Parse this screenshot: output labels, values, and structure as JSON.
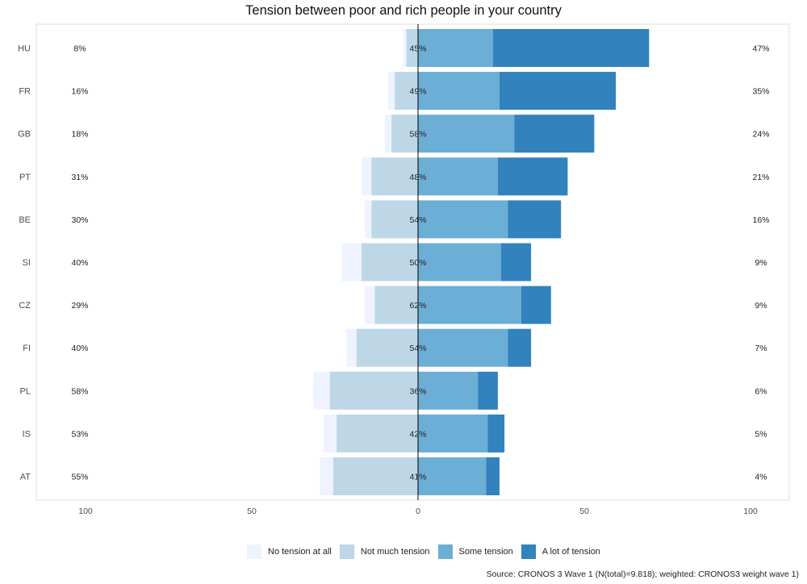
{
  "chart_data": {
    "type": "bar",
    "orientation": "horizontal-diverging",
    "title": "Tension between poor and rich people in your country",
    "categories": [
      "HU",
      "FR",
      "GB",
      "PT",
      "BE",
      "SI",
      "CZ",
      "FI",
      "PL",
      "IS",
      "AT"
    ],
    "series": [
      {
        "name": "No tension at all",
        "color": "#eff3ff",
        "values": [
          1,
          2,
          2,
          3,
          2,
          6,
          3,
          3,
          5,
          4,
          4
        ]
      },
      {
        "name": "Not much tension",
        "color": "#bdd7e7",
        "values": [
          7,
          14,
          16,
          28,
          28,
          34,
          26,
          37,
          53,
          49,
          51
        ]
      },
      {
        "name": "Some tension",
        "color": "#6baed6",
        "values": [
          45,
          49,
          58,
          48,
          54,
          50,
          62,
          54,
          36,
          42,
          41
        ]
      },
      {
        "name": "A lot of tension",
        "color": "#3182bd",
        "values": [
          47,
          35,
          24,
          21,
          16,
          9,
          9,
          7,
          6,
          5,
          4
        ]
      }
    ],
    "left_labels": [
      "8%",
      "16%",
      "18%",
      "31%",
      "30%",
      "40%",
      "29%",
      "40%",
      "58%",
      "53%",
      "55%"
    ],
    "center_labels": [
      "45%",
      "49%",
      "58%",
      "48%",
      "54%",
      "50%",
      "62%",
      "54%",
      "36%",
      "42%",
      "41%"
    ],
    "right_labels": [
      "47%",
      "35%",
      "24%",
      "21%",
      "16%",
      "9%",
      "9%",
      "7%",
      "6%",
      "5%",
      "4%"
    ],
    "xticks": [
      -100,
      -50,
      0,
      50,
      100
    ],
    "xtick_labels": [
      "100",
      "50",
      "0",
      "50",
      "100"
    ],
    "xlim": [
      -100,
      100
    ],
    "legend_position": "bottom",
    "grid": false
  },
  "source_note": "Source: CRONOS 3 Wave 1 (N(total)=9.818); weighted: CRONOS3 weight wave 1)"
}
